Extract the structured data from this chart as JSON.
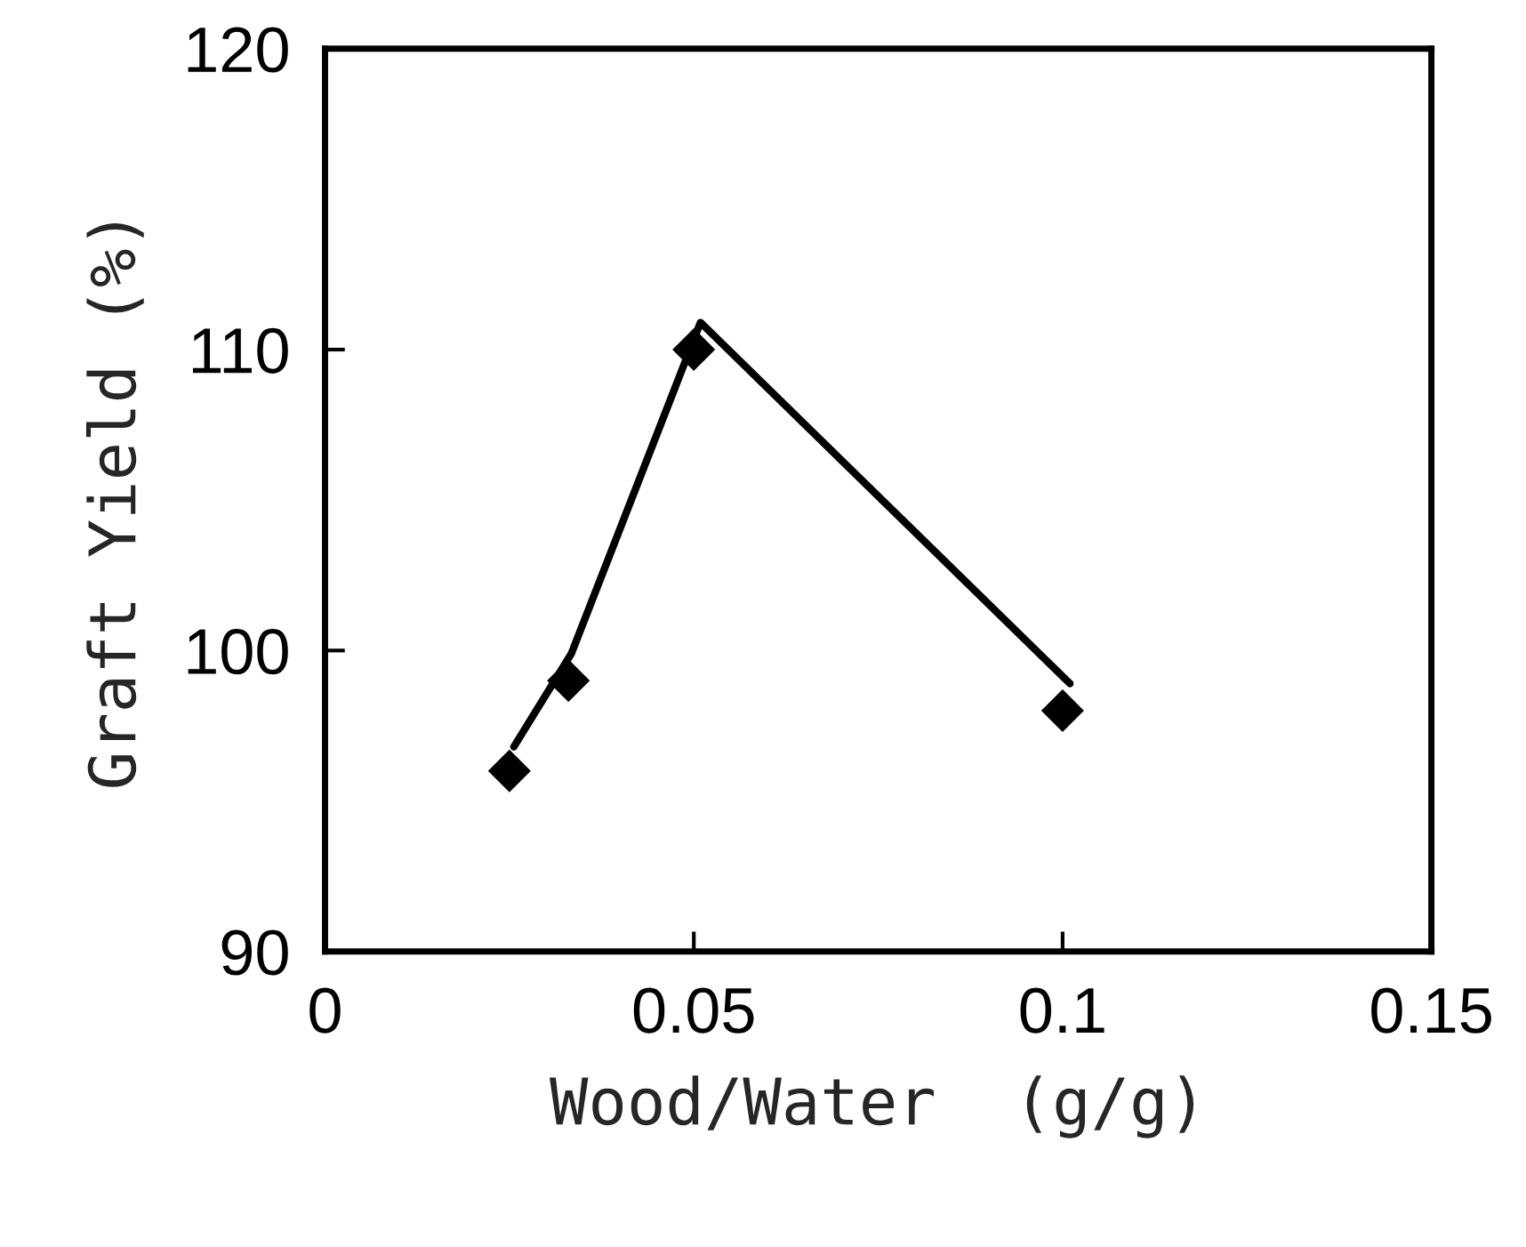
{
  "chart_data": {
    "type": "scatter",
    "xlabel": "Wood/Water  (g/g)",
    "ylabel": "Graft Yield (%)",
    "xlim": [
      0,
      0.15
    ],
    "xticks": [
      0,
      0.05,
      0.1,
      0.15
    ],
    "ylim": [
      90,
      120
    ],
    "yticks": [
      90,
      100,
      110,
      120
    ],
    "grid": false,
    "legend": false,
    "series": [
      {
        "marker": "diamond",
        "color": "#000000",
        "x": [
          0.025,
          0.033,
          0.05,
          0.1
        ],
        "values": [
          96,
          99,
          110,
          98
        ]
      },
      {
        "type": "line",
        "marker": "none",
        "line_style": "solid",
        "color": "#000000",
        "x": [
          0.0256,
          0.0334,
          0.0509,
          0.101
        ],
        "values": [
          96.8,
          99.9,
          110.9,
          98.9
        ]
      }
    ]
  }
}
